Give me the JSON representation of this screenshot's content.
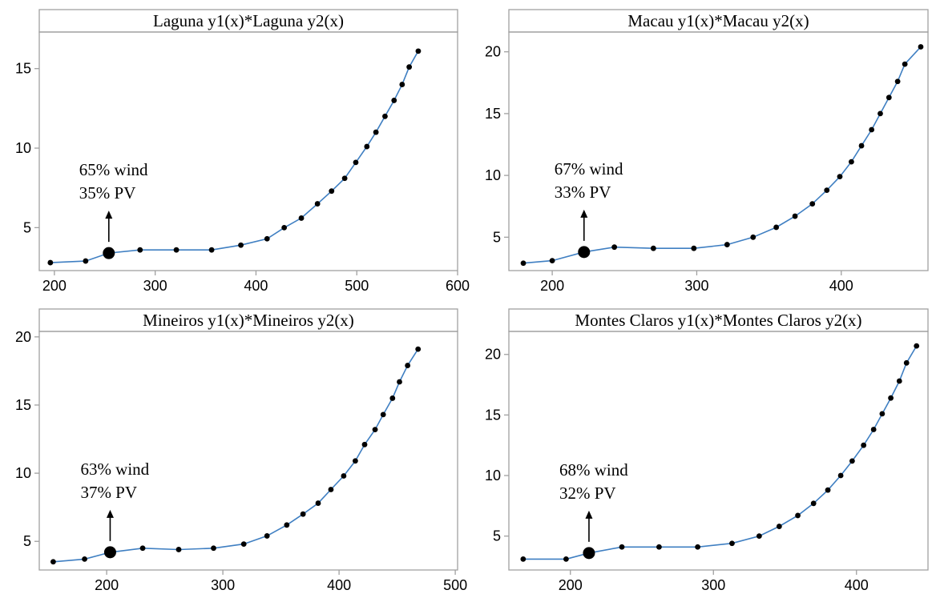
{
  "chart_data": [
    {
      "type": "scatter",
      "title": "Laguna y1(x)*Laguna y2(x)",
      "xlabel": "",
      "ylabel": "",
      "xlim": [
        185,
        600
      ],
      "ylim": [
        2.3,
        17.3
      ],
      "xticks": [
        200,
        300,
        400,
        500,
        600
      ],
      "yticks": [
        5,
        10,
        15
      ],
      "grid": false,
      "series": [
        {
          "x": [
            196,
            231,
            254,
            285,
            321,
            356,
            385,
            411,
            428,
            445,
            461,
            475,
            488,
            499,
            510,
            519,
            528,
            537,
            545,
            552,
            561
          ],
          "y": [
            2.8,
            2.9,
            3.4,
            3.6,
            3.6,
            3.6,
            3.9,
            4.3,
            5.0,
            5.6,
            6.5,
            7.3,
            8.1,
            9.1,
            10.1,
            11.0,
            12.0,
            13.0,
            14.0,
            15.1,
            16.1
          ]
        }
      ],
      "highlight": {
        "x": 254,
        "y": 3.4
      },
      "annotation": [
        "65% wind",
        "35% PV"
      ]
    },
    {
      "type": "scatter",
      "title": "Macau y1(x)*Macau y2(x)",
      "xlabel": "",
      "ylabel": "",
      "xlim": [
        170,
        460
      ],
      "ylim": [
        2.3,
        21.6
      ],
      "xticks": [
        200,
        300,
        400
      ],
      "yticks": [
        5,
        10,
        15,
        20
      ],
      "grid": false,
      "series": [
        {
          "x": [
            180,
            200,
            222,
            243,
            270,
            298,
            321,
            339,
            355,
            368,
            380,
            390,
            399,
            407,
            414,
            421,
            427,
            433,
            439,
            444,
            455
          ],
          "y": [
            2.9,
            3.1,
            3.8,
            4.2,
            4.1,
            4.1,
            4.4,
            5.0,
            5.8,
            6.7,
            7.7,
            8.8,
            9.9,
            11.1,
            12.4,
            13.7,
            15.0,
            16.3,
            17.6,
            19.0,
            20.4
          ]
        }
      ],
      "highlight": {
        "x": 222,
        "y": 3.8
      },
      "annotation": [
        "67% wind",
        "33% PV"
      ]
    },
    {
      "type": "scatter",
      "title": "Mineiros y1(x)*Mineiros y2(x)",
      "xlabel": "",
      "ylabel": "",
      "xlim": [
        142,
        502
      ],
      "ylim": [
        2.9,
        20.4
      ],
      "xticks": [
        200,
        300,
        400,
        500
      ],
      "yticks": [
        5,
        10,
        15,
        20
      ],
      "grid": false,
      "series": [
        {
          "x": [
            154,
            181,
            203,
            231,
            262,
            292,
            318,
            338,
            355,
            369,
            382,
            393,
            404,
            414,
            422,
            431,
            438,
            446,
            452,
            459,
            468
          ],
          "y": [
            3.5,
            3.7,
            4.2,
            4.5,
            4.4,
            4.5,
            4.8,
            5.4,
            6.2,
            7.0,
            7.8,
            8.8,
            9.8,
            10.9,
            12.1,
            13.2,
            14.3,
            15.5,
            16.7,
            17.9,
            19.1
          ]
        }
      ],
      "highlight": {
        "x": 203,
        "y": 4.2
      },
      "annotation": [
        "63% wind",
        "37% PV"
      ]
    },
    {
      "type": "scatter",
      "title": "Montes Claros y1(x)*Montes Claros y2(x)",
      "xlabel": "",
      "ylabel": "",
      "xlim": [
        157,
        450
      ],
      "ylim": [
        2.2,
        21.9
      ],
      "xticks": [
        200,
        300,
        400
      ],
      "yticks": [
        5,
        10,
        15,
        20
      ],
      "grid": false,
      "series": [
        {
          "x": [
            167,
            197,
            213,
            236,
            262,
            289,
            313,
            332,
            346,
            359,
            370,
            380,
            389,
            397,
            405,
            412,
            418,
            424,
            430,
            435,
            442
          ],
          "y": [
            3.1,
            3.1,
            3.6,
            4.1,
            4.1,
            4.1,
            4.4,
            5.0,
            5.8,
            6.7,
            7.7,
            8.8,
            10.0,
            11.2,
            12.5,
            13.8,
            15.1,
            16.4,
            17.8,
            19.3,
            20.7
          ]
        }
      ],
      "highlight": {
        "x": 213,
        "y": 3.6
      },
      "annotation": [
        "68% wind",
        "32% PV"
      ]
    }
  ],
  "colors": {
    "line": "#3f7fc2",
    "point": "#000000",
    "frame": "#a0a0a0"
  }
}
